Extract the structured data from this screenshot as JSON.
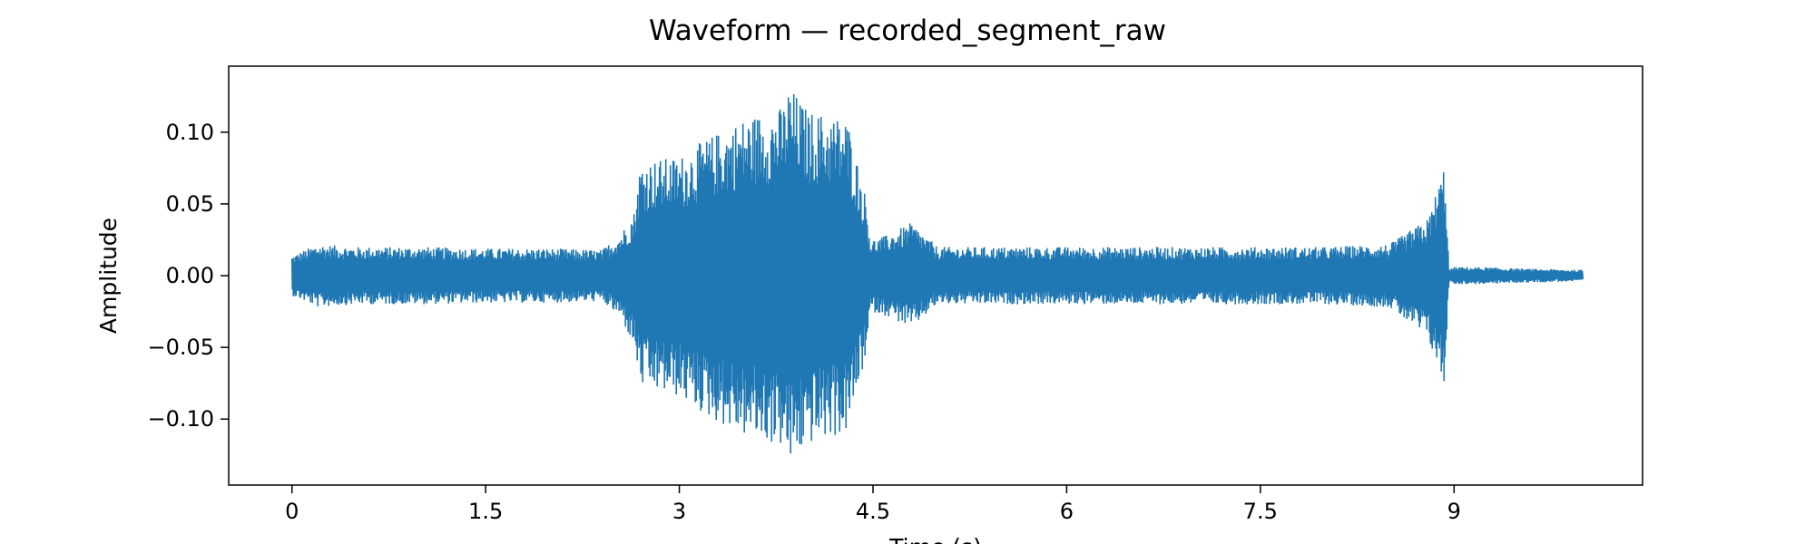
{
  "chart_data": {
    "type": "line",
    "title": "Waveform — recorded_segment_raw",
    "xlabel": "Time (s)",
    "ylabel": "Amplitude",
    "xlim": [
      -0.49,
      10.46
    ],
    "ylim": [
      -0.146,
      0.146
    ],
    "x_ticks": [
      0,
      1.5,
      3,
      4.5,
      6,
      7.5,
      9
    ],
    "x_tick_labels": [
      "0",
      "1.5",
      "3",
      "4.5",
      "6",
      "7.5",
      "9"
    ],
    "y_ticks": [
      0.1,
      0.05,
      0.0,
      -0.05,
      -0.1
    ],
    "y_tick_labels": [
      "0.10",
      "0.05",
      "0.00",
      "−0.05",
      "−0.10"
    ],
    "grid": false,
    "legend": false,
    "series": [
      {
        "color": "#1f77b4",
        "x": [
          0,
          0.2,
          0.5,
          1.0,
          1.5,
          2.0,
          2.4,
          2.55,
          2.65,
          2.7,
          3.0,
          3.2,
          3.5,
          3.8,
          3.85,
          4.0,
          4.3,
          4.45,
          4.48,
          4.6,
          4.8,
          5.0,
          6.0,
          7.0,
          8.0,
          8.5,
          8.8,
          8.93,
          8.96,
          9.0,
          9.2,
          9.5,
          10.0
        ],
        "envelope_max": [
          0.014,
          0.022,
          0.02,
          0.02,
          0.019,
          0.019,
          0.018,
          0.03,
          0.045,
          0.08,
          0.083,
          0.095,
          0.11,
          0.118,
          0.133,
          0.115,
          0.11,
          0.053,
          0.025,
          0.028,
          0.037,
          0.02,
          0.02,
          0.02,
          0.02,
          0.022,
          0.04,
          0.079,
          0.004,
          0.006,
          0.006,
          0.005,
          0.004
        ],
        "envelope_min": [
          -0.014,
          -0.022,
          -0.02,
          -0.02,
          -0.019,
          -0.019,
          -0.018,
          -0.03,
          -0.05,
          -0.078,
          -0.085,
          -0.098,
          -0.112,
          -0.12,
          -0.133,
          -0.118,
          -0.11,
          -0.055,
          -0.025,
          -0.028,
          -0.037,
          -0.02,
          -0.02,
          -0.02,
          -0.02,
          -0.022,
          -0.045,
          -0.079,
          -0.004,
          -0.006,
          -0.006,
          -0.005,
          -0.004
        ]
      }
    ]
  }
}
